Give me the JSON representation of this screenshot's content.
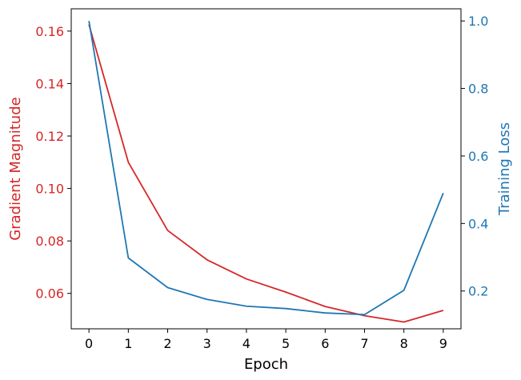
{
  "chart_data": {
    "type": "line",
    "title": "",
    "xlabel": "Epoch",
    "ylabel_left": "Gradient Magnitude",
    "ylabel_right": "Training Loss",
    "x": [
      0,
      1,
      2,
      3,
      4,
      5,
      6,
      7,
      8,
      9
    ],
    "x_ticks": [
      "0",
      "1",
      "2",
      "3",
      "4",
      "5",
      "6",
      "7",
      "8",
      "9"
    ],
    "xlim": [
      -0.45,
      9.45
    ],
    "ylim_left": [
      0.0465,
      0.1685
    ],
    "ylim_right": [
      0.088,
      1.036
    ],
    "y_ticks_left": [
      {
        "value": 0.06,
        "label": "0.06"
      },
      {
        "value": 0.08,
        "label": "0.08"
      },
      {
        "value": 0.1,
        "label": "0.10"
      },
      {
        "value": 0.12,
        "label": "0.12"
      },
      {
        "value": 0.14,
        "label": "0.14"
      },
      {
        "value": 0.16,
        "label": "0.16"
      }
    ],
    "y_ticks_right": [
      {
        "value": 0.2,
        "label": "0.2"
      },
      {
        "value": 0.4,
        "label": "0.4"
      },
      {
        "value": 0.6,
        "label": "0.6"
      },
      {
        "value": 0.8,
        "label": "0.8"
      },
      {
        "value": 1.0,
        "label": "1.0"
      }
    ],
    "grid": false,
    "legend": "none",
    "series": [
      {
        "axis": "left",
        "color": "#d62728",
        "values": [
          0.1625,
          0.11,
          0.084,
          0.0728,
          0.0655,
          0.0605,
          0.055,
          0.0515,
          0.0491,
          0.0535
        ]
      },
      {
        "axis": "right",
        "color": "#1f77b4",
        "values": [
          1.0,
          0.298,
          0.21,
          0.175,
          0.155,
          0.148,
          0.135,
          0.13,
          0.202,
          0.49
        ]
      }
    ]
  }
}
